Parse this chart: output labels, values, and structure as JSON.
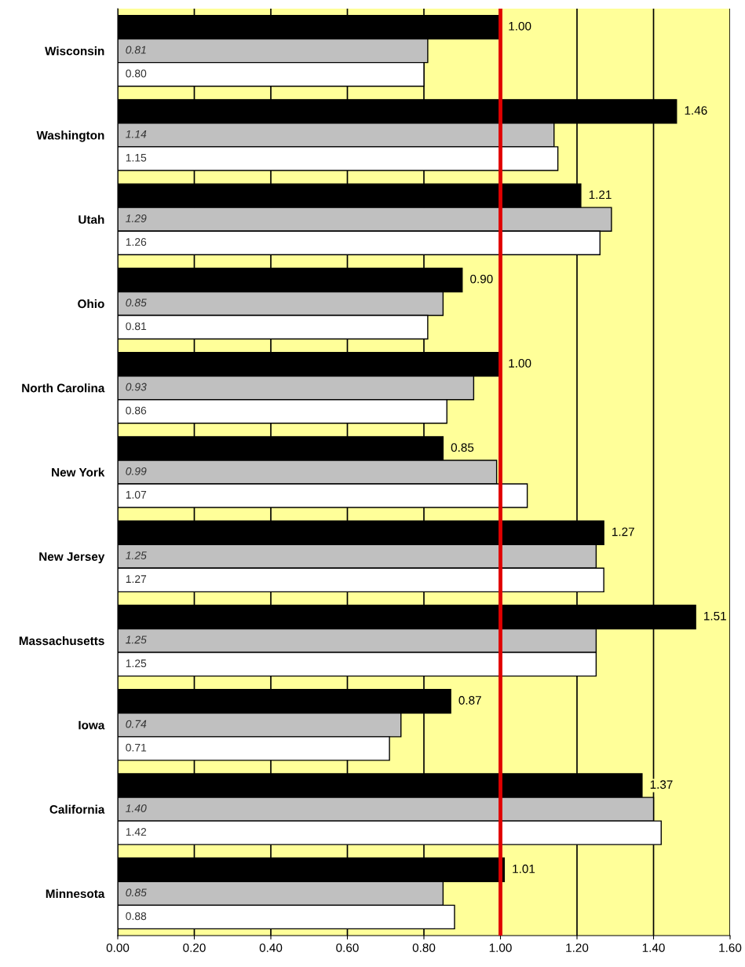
{
  "chart_data": {
    "type": "bar",
    "orientation": "horizontal",
    "categories": [
      "Wisconsin",
      "Washington",
      "Utah",
      "Ohio",
      "North Carolina",
      "New York",
      "New Jersey",
      "Massachusetts",
      "Iowa",
      "California",
      "Minnesota"
    ],
    "series": [
      {
        "color": "#000000",
        "values": [
          1.0,
          1.46,
          1.21,
          0.9,
          1.0,
          0.85,
          1.27,
          1.51,
          0.87,
          1.37,
          1.01
        ],
        "value_labels": [
          "1.00",
          "1.46",
          "1.21",
          "0.90",
          "1.00",
          "0.85",
          "1.27",
          "1.51",
          "0.87",
          "1.37",
          "1.01"
        ]
      },
      {
        "color": "#c0c0c0",
        "values": [
          0.81,
          1.14,
          1.29,
          0.85,
          0.93,
          0.99,
          1.25,
          1.25,
          0.74,
          1.4,
          0.85
        ],
        "value_labels": [
          "0.81",
          "1.14",
          "1.29",
          "0.85",
          "0.93",
          "0.99",
          "1.25",
          "1.25",
          "0.74",
          "1.40",
          "0.85"
        ]
      },
      {
        "color": "#ffffff",
        "values": [
          0.8,
          1.15,
          1.26,
          0.81,
          0.86,
          1.07,
          1.27,
          1.25,
          0.71,
          1.42,
          0.88
        ],
        "value_labels": [
          "0.80",
          "1.15",
          "1.26",
          "0.81",
          "0.86",
          "1.07",
          "1.27",
          "1.25",
          "0.71",
          "1.42",
          "0.88"
        ]
      }
    ],
    "xlim": [
      0,
      1.6
    ],
    "xticks": [
      {
        "value": 0,
        "label": "0.00"
      },
      {
        "value": 0.2,
        "label": "0.20"
      },
      {
        "value": 0.4,
        "label": "0.40"
      },
      {
        "value": 0.6,
        "label": "0.60"
      },
      {
        "value": 0.8,
        "label": "0.80"
      },
      {
        "value": 1.0,
        "label": "1.00"
      },
      {
        "value": 1.2,
        "label": "1.20"
      },
      {
        "value": 1.4,
        "label": "1.40"
      },
      {
        "value": 1.6,
        "label": "1.60"
      }
    ],
    "grid": "x",
    "ref_lines": [
      {
        "axis": "x",
        "value": 1.0,
        "color": "#e00000"
      }
    ]
  }
}
